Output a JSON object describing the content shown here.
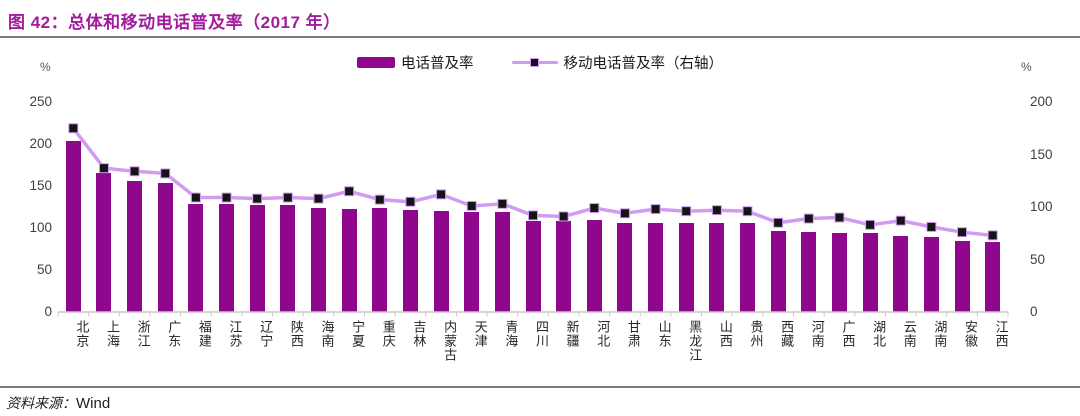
{
  "header": {
    "title": "图 42：总体和移动电话普及率（2017 年）"
  },
  "legend": [
    {
      "label": "电话普及率",
      "swatch": "bar-swatch"
    },
    {
      "label": "移动电话普及率（右轴）",
      "swatch": "line-marker-swatch"
    }
  ],
  "footer": {
    "source_label": "资料来源：",
    "source_value": "Wind"
  },
  "colors": {
    "bar": "#8E078C",
    "line": "#D19BF1",
    "marker_fill": "#141414",
    "marker_stroke": "#D19BF1",
    "title": "#A31C9E",
    "axis_text": "#404040",
    "baseline": "#c8c8c8"
  },
  "chart_data": {
    "type": "bar",
    "subtype": "bar+line dual axis",
    "title": "图 42：总体和移动电话普及率（2017 年）",
    "categories": [
      "北京",
      "上海",
      "浙江",
      "广东",
      "福建",
      "江苏",
      "辽宁",
      "陕西",
      "海南",
      "宁夏",
      "重庆",
      "吉林",
      "内蒙古",
      "天津",
      "青海",
      "四川",
      "新疆",
      "河北",
      "甘肃",
      "山东",
      "黑龙江",
      "山西",
      "贵州",
      "西藏",
      "河南",
      "广西",
      "湖北",
      "云南",
      "湖南",
      "安徽",
      "江西"
    ],
    "series": [
      {
        "name": "电话普及率",
        "type": "bar",
        "axis": "left",
        "values": [
          204,
          165,
          156,
          153,
          129,
          128,
          127,
          127,
          124,
          123,
          124,
          122,
          120,
          119,
          119,
          108,
          108,
          109,
          106,
          106,
          106,
          106,
          106,
          97,
          95,
          94,
          94,
          91,
          89,
          85,
          83
        ]
      },
      {
        "name": "移动电话普及率（右轴）",
        "type": "line",
        "axis": "right",
        "values": [
          175,
          137,
          134,
          132,
          109,
          109,
          108,
          109,
          108,
          115,
          107,
          105,
          112,
          101,
          103,
          92,
          91,
          99,
          94,
          98,
          96,
          97,
          96,
          85,
          89,
          90,
          83,
          87,
          81,
          76,
          73
        ]
      }
    ],
    "left_axis": {
      "label": "%",
      "range": [
        0,
        250
      ],
      "ticks": [
        250,
        200,
        150,
        100,
        50,
        0
      ]
    },
    "right_axis": {
      "label": "%",
      "range": [
        0,
        200
      ],
      "ticks": [
        200,
        150,
        100,
        50,
        0
      ]
    },
    "grid": false,
    "legend_position": "top"
  }
}
